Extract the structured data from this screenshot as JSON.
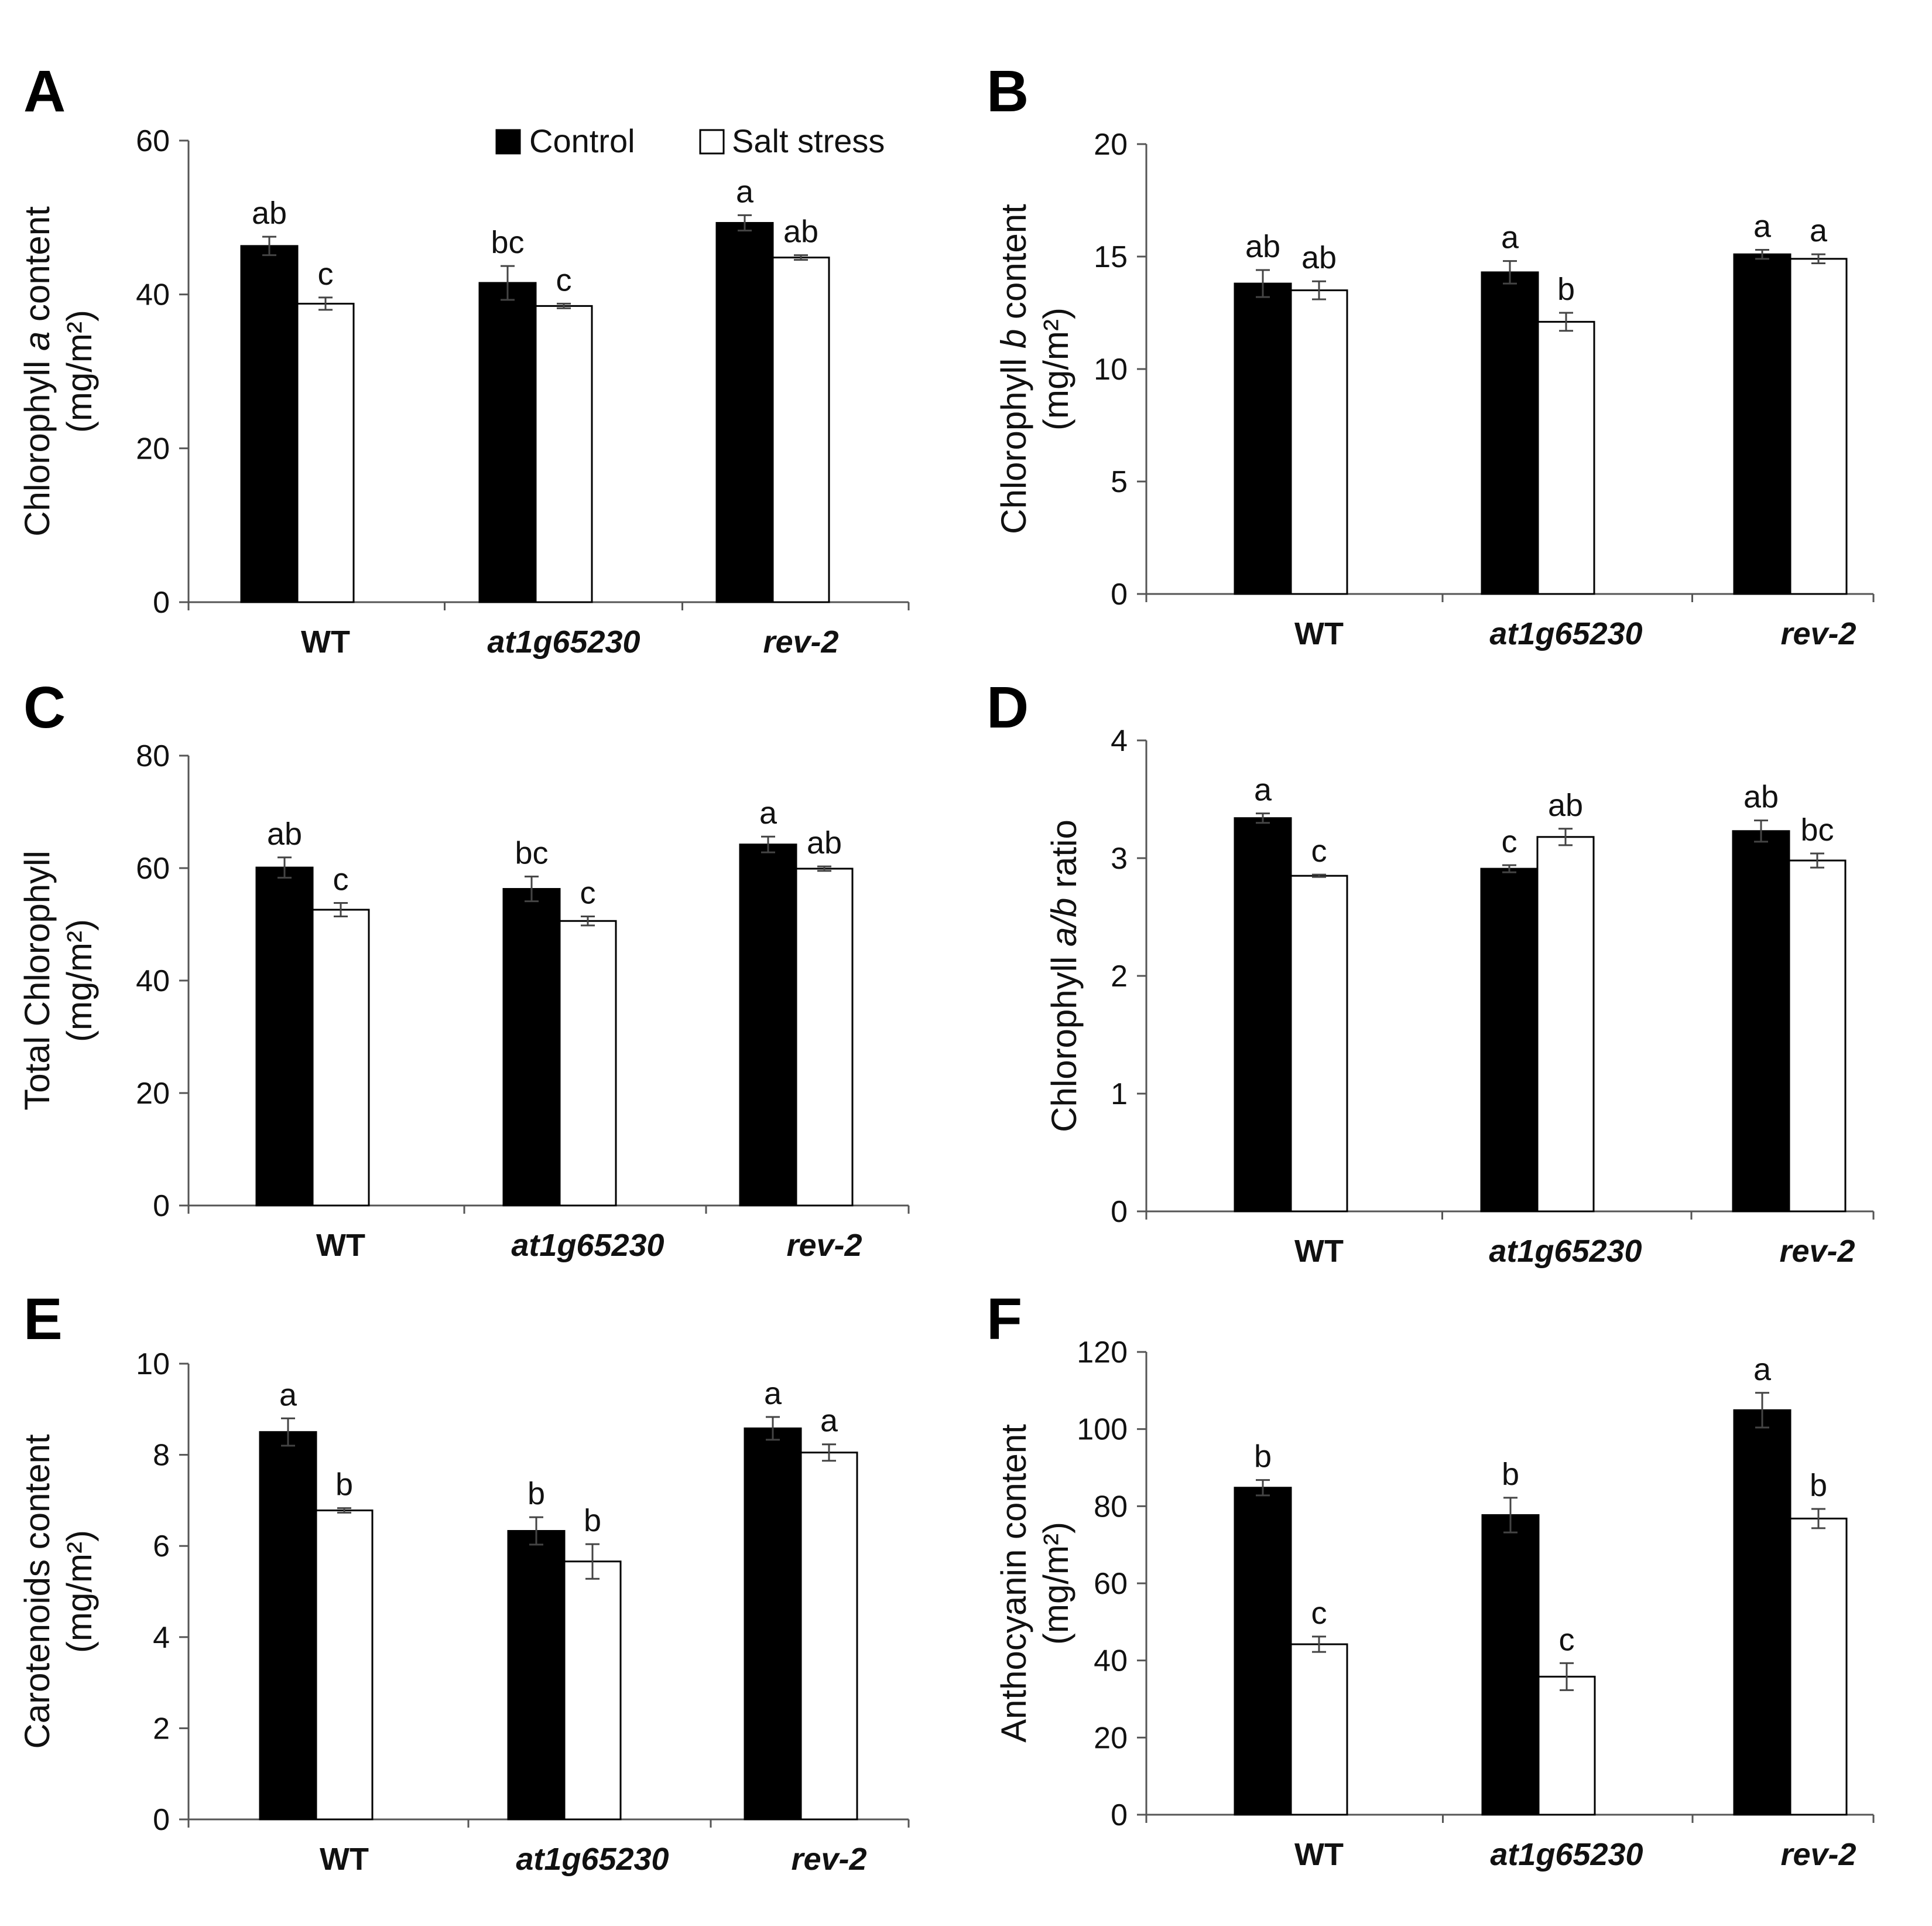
{
  "legend": {
    "control_label": "Control",
    "salt_label": "Salt stress",
    "control_color": "#000000",
    "salt_color": "#ffffff"
  },
  "chart_data": [
    {
      "panel": "A",
      "type": "bar",
      "categories": [
        "WT",
        "at1g65230",
        "rev-2"
      ],
      "category_italic": [
        false,
        true,
        true
      ],
      "ylabel_line1": [
        "Chlorophyll ",
        "a",
        " content"
      ],
      "ylabel_line2": "(mg/m²)",
      "ylim": [
        0,
        60
      ],
      "yticks": [
        0,
        20,
        40,
        60
      ],
      "series": [
        {
          "name": "Control",
          "values": [
            46.3,
            41.5,
            49.3
          ],
          "errors": [
            1.2,
            2.2,
            1.0
          ],
          "letters": [
            "ab",
            "bc",
            "a"
          ]
        },
        {
          "name": "Salt stress",
          "values": [
            38.8,
            38.5,
            44.8
          ],
          "errors": [
            0.8,
            0.3,
            0.3
          ],
          "letters": [
            "c",
            "c",
            "ab"
          ]
        }
      ]
    },
    {
      "panel": "B",
      "type": "bar",
      "categories": [
        "WT",
        "at1g65230",
        "rev-2"
      ],
      "category_italic": [
        false,
        true,
        true
      ],
      "ylabel_line1": [
        "Chlorophyll ",
        "b",
        " content"
      ],
      "ylabel_line2": "(mg/m²)",
      "ylim": [
        0,
        20
      ],
      "yticks": [
        0,
        5,
        10,
        15,
        20
      ],
      "series": [
        {
          "name": "Control",
          "values": [
            13.8,
            14.3,
            15.1
          ],
          "errors": [
            0.6,
            0.5,
            0.2
          ],
          "letters": [
            "ab",
            "a",
            "a"
          ]
        },
        {
          "name": "Salt stress",
          "values": [
            13.5,
            12.1,
            14.9
          ],
          "errors": [
            0.4,
            0.4,
            0.2
          ],
          "letters": [
            "ab",
            "b",
            "a"
          ]
        }
      ]
    },
    {
      "panel": "C",
      "type": "bar",
      "categories": [
        "WT",
        "at1g65230",
        "rev-2"
      ],
      "category_italic": [
        false,
        true,
        true
      ],
      "ylabel_line1": [
        "Total Chlorophyll"
      ],
      "ylabel_line2": "(mg/m²)",
      "ylim": [
        0,
        80
      ],
      "yticks": [
        0,
        20,
        40,
        60,
        80
      ],
      "series": [
        {
          "name": "Control",
          "values": [
            60.1,
            56.3,
            64.2
          ],
          "errors": [
            1.8,
            2.2,
            1.4
          ],
          "letters": [
            "ab",
            "bc",
            "a"
          ]
        },
        {
          "name": "Salt stress",
          "values": [
            52.6,
            50.6,
            59.9
          ],
          "errors": [
            1.2,
            0.8,
            0.4
          ],
          "letters": [
            "c",
            "c",
            "ab"
          ]
        }
      ]
    },
    {
      "panel": "D",
      "type": "bar",
      "categories": [
        "WT",
        "at1g65230",
        "rev-2"
      ],
      "category_italic": [
        false,
        true,
        true
      ],
      "ylabel_line1": [
        "Chlorophyll ",
        "a/b",
        " ratio"
      ],
      "ylabel_line2": "",
      "ylim": [
        0,
        4
      ],
      "yticks": [
        0,
        1,
        2,
        3,
        4
      ],
      "series": [
        {
          "name": "Control",
          "values": [
            3.34,
            2.91,
            3.23
          ],
          "errors": [
            0.04,
            0.03,
            0.09
          ],
          "letters": [
            "a",
            "c",
            "ab"
          ]
        },
        {
          "name": "Salt stress",
          "values": [
            2.85,
            3.18,
            2.98
          ],
          "errors": [
            0.01,
            0.07,
            0.06
          ],
          "letters": [
            "c",
            "ab",
            "bc"
          ]
        }
      ]
    },
    {
      "panel": "E",
      "type": "bar",
      "categories": [
        "WT",
        "at1g65230",
        "rev-2"
      ],
      "category_italic": [
        false,
        true,
        true
      ],
      "ylabel_line1": [
        "Carotenoids content"
      ],
      "ylabel_line2": "(mg/m²)",
      "ylim": [
        0,
        10
      ],
      "yticks": [
        0,
        2,
        4,
        6,
        8,
        10
      ],
      "series": [
        {
          "name": "Control",
          "values": [
            8.5,
            6.33,
            8.58
          ],
          "errors": [
            0.3,
            0.3,
            0.25
          ],
          "letters": [
            "a",
            "b",
            "a"
          ]
        },
        {
          "name": "Salt stress",
          "values": [
            6.78,
            5.66,
            8.05
          ],
          "errors": [
            0.05,
            0.38,
            0.18
          ],
          "letters": [
            "b",
            "b",
            "a"
          ]
        }
      ]
    },
    {
      "panel": "F",
      "type": "bar",
      "categories": [
        "WT",
        "at1g65230",
        "rev-2"
      ],
      "category_italic": [
        false,
        true,
        true
      ],
      "ylabel_line1": [
        "Anthocyanin content"
      ],
      "ylabel_line2": "(mg/m²)",
      "ylim": [
        0,
        120
      ],
      "yticks": [
        0,
        20,
        40,
        60,
        80,
        100,
        120
      ],
      "series": [
        {
          "name": "Control",
          "values": [
            84.8,
            77.7,
            104.9
          ],
          "errors": [
            2.0,
            4.5,
            4.5
          ],
          "letters": [
            "b",
            "b",
            "a"
          ]
        },
        {
          "name": "Salt stress",
          "values": [
            44.2,
            35.8,
            76.8
          ],
          "errors": [
            2.0,
            3.5,
            2.5
          ],
          "letters": [
            "c",
            "c",
            "b"
          ]
        }
      ]
    }
  ]
}
